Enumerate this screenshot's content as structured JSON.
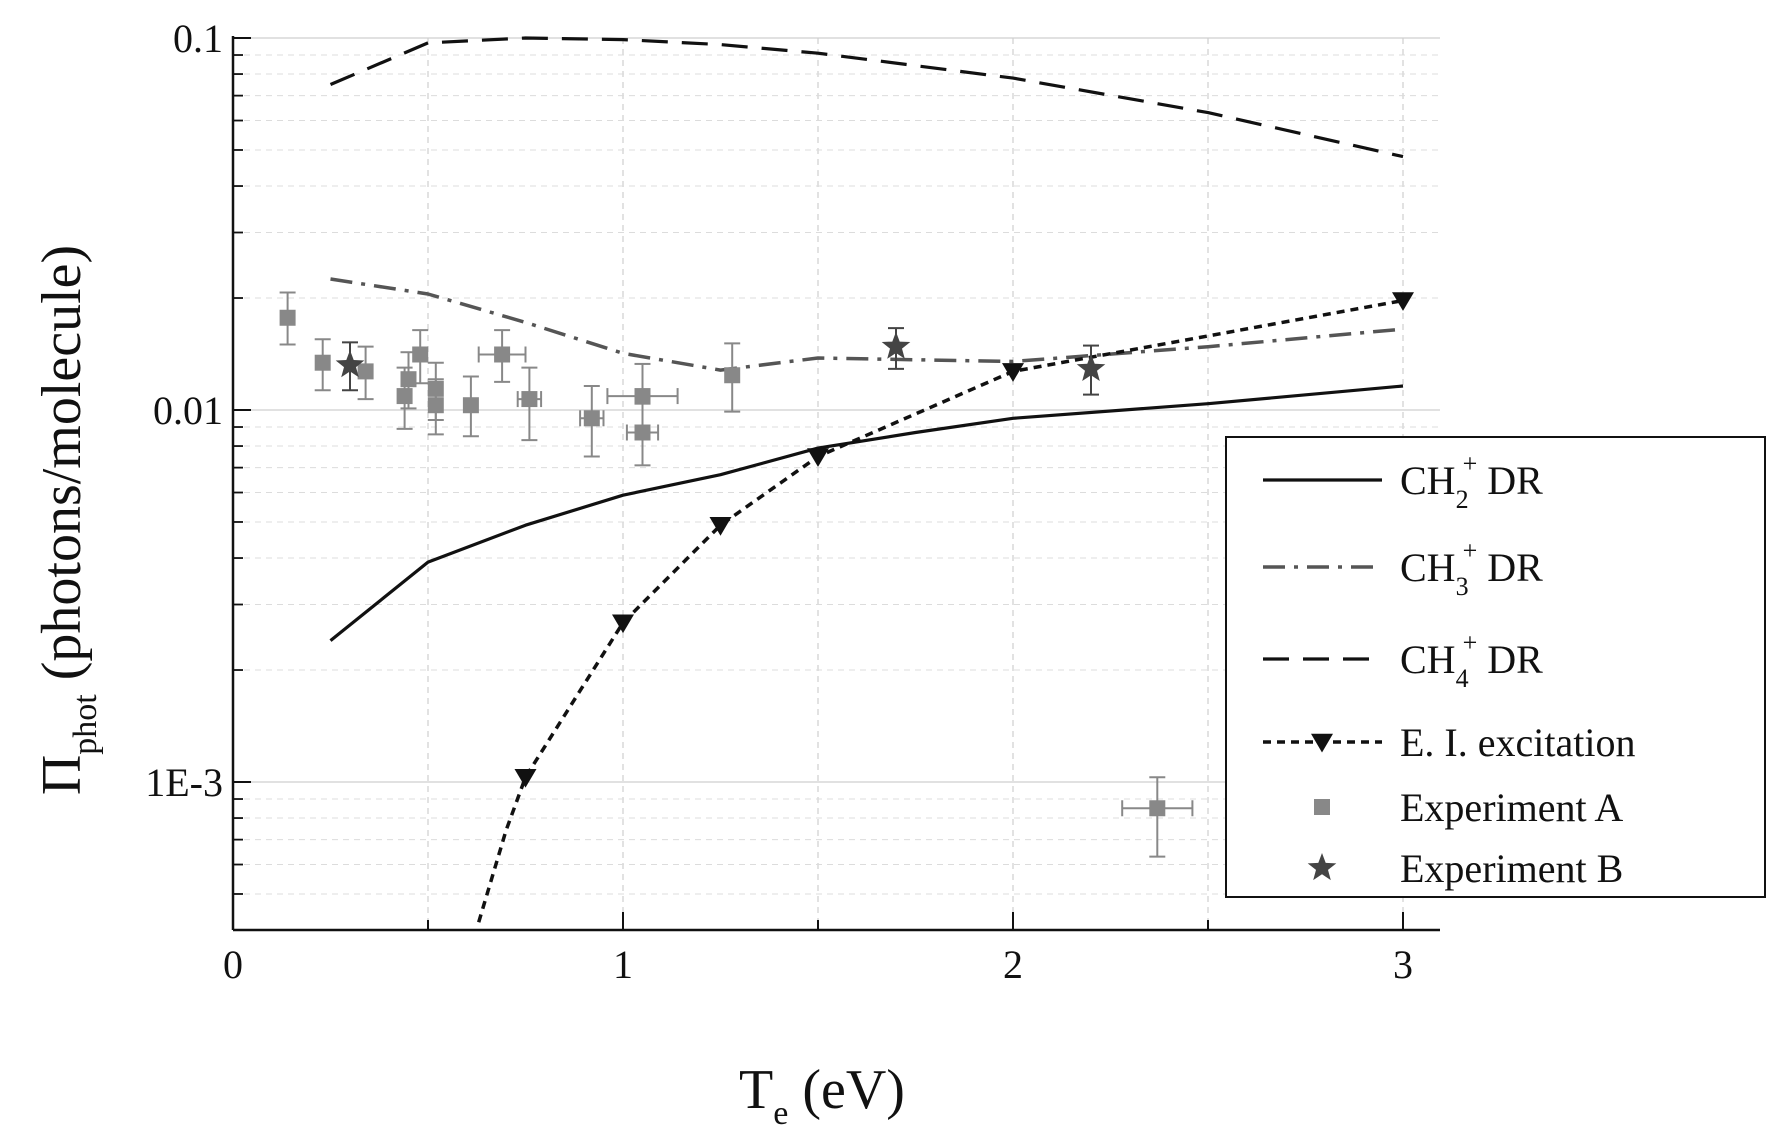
{
  "chart_data": {
    "type": "line",
    "xlabel": {
      "base": "T",
      "sub": "e",
      "rest": " (eV)"
    },
    "ylabel": {
      "base": "Π",
      "sub": "phot",
      "rest": " (photons/molecule)"
    },
    "xlim": [
      0,
      3.1
    ],
    "ylim": [
      0.00042,
      0.1
    ],
    "yscale": "log",
    "grid": true,
    "legend_position": "bottom-right",
    "x_ticks": [
      0,
      1,
      2,
      3
    ],
    "x_tick_labels": [
      "0",
      "1",
      "2",
      "3"
    ],
    "y_ticks": [
      0.001,
      0.01,
      0.1
    ],
    "y_tick_labels": [
      "1E-3",
      "0.01",
      "0.1"
    ],
    "series": [
      {
        "name": "CH2+ DR",
        "legend": {
          "base": "CH",
          "sub": "2",
          "sup": "+",
          "rest": " DR"
        },
        "style": "solid",
        "color": "#111111",
        "x": [
          0.25,
          0.5,
          0.75,
          1.0,
          1.25,
          1.5,
          1.75,
          2.0,
          2.5,
          3.0
        ],
        "y": [
          0.0024,
          0.0039,
          0.0049,
          0.0059,
          0.0067,
          0.0079,
          0.0087,
          0.0095,
          0.0104,
          0.0116
        ]
      },
      {
        "name": "CH3+ DR",
        "legend": {
          "base": "CH",
          "sub": "3",
          "sup": "+",
          "rest": " DR"
        },
        "style": "dashdot",
        "color": "#555555",
        "x": [
          0.25,
          0.5,
          0.75,
          1.0,
          1.25,
          1.5,
          2.0,
          2.5,
          3.0
        ],
        "y": [
          0.0225,
          0.0205,
          0.0172,
          0.0142,
          0.0128,
          0.0138,
          0.0135,
          0.0148,
          0.0165
        ]
      },
      {
        "name": "CH4+ DR",
        "legend": {
          "base": "CH",
          "sub": "4",
          "sup": "+",
          "rest": " DR"
        },
        "style": "dashed",
        "color": "#111111",
        "x": [
          0.25,
          0.5,
          0.75,
          1.0,
          1.25,
          1.5,
          2.0,
          2.5,
          3.0
        ],
        "y": [
          0.075,
          0.097,
          0.1,
          0.099,
          0.096,
          0.091,
          0.078,
          0.063,
          0.048
        ]
      },
      {
        "name": "E. I. excitation",
        "legend": {
          "base": "E. I. excitation",
          "sub": "",
          "sup": "",
          "rest": ""
        },
        "style": "dotted",
        "color": "#111111",
        "marker": "triangle-down",
        "x": [
          0.63,
          0.7,
          0.75,
          1.0,
          1.25,
          1.5,
          2.0,
          3.0
        ],
        "y": [
          0.00042,
          0.00074,
          0.00103,
          0.00268,
          0.0049,
          0.0075,
          0.0127,
          0.0197
        ],
        "marker_x": [
          0.75,
          1.0,
          1.25,
          1.5,
          2.0,
          3.0
        ],
        "marker_y": [
          0.00103,
          0.00268,
          0.0049,
          0.0075,
          0.0127,
          0.0197
        ]
      }
    ],
    "scatter": [
      {
        "name": "Experiment A",
        "legend": {
          "base": "Experiment A",
          "sub": "",
          "sup": "",
          "rest": ""
        },
        "marker": "square",
        "color": "#888888",
        "points": [
          {
            "x": 0.14,
            "y": 0.0177,
            "xerr": 0,
            "ylo": 0.015,
            "yhi": 0.0207
          },
          {
            "x": 0.23,
            "y": 0.0134,
            "xerr": 0,
            "ylo": 0.0113,
            "yhi": 0.0155
          },
          {
            "x": 0.34,
            "y": 0.0127,
            "xerr": 0,
            "ylo": 0.0107,
            "yhi": 0.0148
          },
          {
            "x": 0.44,
            "y": 0.0109,
            "xerr": 0,
            "ylo": 0.0089,
            "yhi": 0.013
          },
          {
            "x": 0.45,
            "y": 0.0121,
            "xerr": 0,
            "ylo": 0.0101,
            "yhi": 0.0143
          },
          {
            "x": 0.48,
            "y": 0.0141,
            "xerr": 0,
            "ylo": 0.0118,
            "yhi": 0.0164
          },
          {
            "x": 0.52,
            "y": 0.0114,
            "xerr": 0,
            "ylo": 0.0094,
            "yhi": 0.0134
          },
          {
            "x": 0.52,
            "y": 0.0103,
            "xerr": 0,
            "ylo": 0.0086,
            "yhi": 0.0121
          },
          {
            "x": 0.61,
            "y": 0.0103,
            "xerr": 0,
            "ylo": 0.0085,
            "yhi": 0.0123
          },
          {
            "x": 0.69,
            "y": 0.0141,
            "xerr": 0.06,
            "ylo": 0.0119,
            "yhi": 0.0164
          },
          {
            "x": 0.76,
            "y": 0.0107,
            "xerr": 0.03,
            "ylo": 0.0083,
            "yhi": 0.013
          },
          {
            "x": 0.92,
            "y": 0.0095,
            "xerr": 0.03,
            "ylo": 0.0075,
            "yhi": 0.0116
          },
          {
            "x": 1.05,
            "y": 0.0109,
            "xerr": 0.09,
            "ylo": 0.0089,
            "yhi": 0.0133
          },
          {
            "x": 1.05,
            "y": 0.0087,
            "xerr": 0.04,
            "ylo": 0.0071,
            "yhi": 0.0104
          },
          {
            "x": 1.28,
            "y": 0.0124,
            "xerr": 0,
            "ylo": 0.0099,
            "yhi": 0.0151
          },
          {
            "x": 2.37,
            "y": 0.00085,
            "xerr": 0.09,
            "ylo": 0.00063,
            "yhi": 0.00103
          }
        ]
      },
      {
        "name": "Experiment B",
        "legend": {
          "base": "Experiment B",
          "sub": "",
          "sup": "",
          "rest": ""
        },
        "marker": "star",
        "color": "#444444",
        "points": [
          {
            "x": 0.3,
            "y": 0.0132,
            "xerr": 0,
            "ylo": 0.0113,
            "yhi": 0.0152
          },
          {
            "x": 1.7,
            "y": 0.0148,
            "xerr": 0,
            "ylo": 0.0129,
            "yhi": 0.0166
          },
          {
            "x": 2.2,
            "y": 0.0129,
            "xerr": 0,
            "ylo": 0.011,
            "yhi": 0.0149
          }
        ]
      }
    ]
  }
}
